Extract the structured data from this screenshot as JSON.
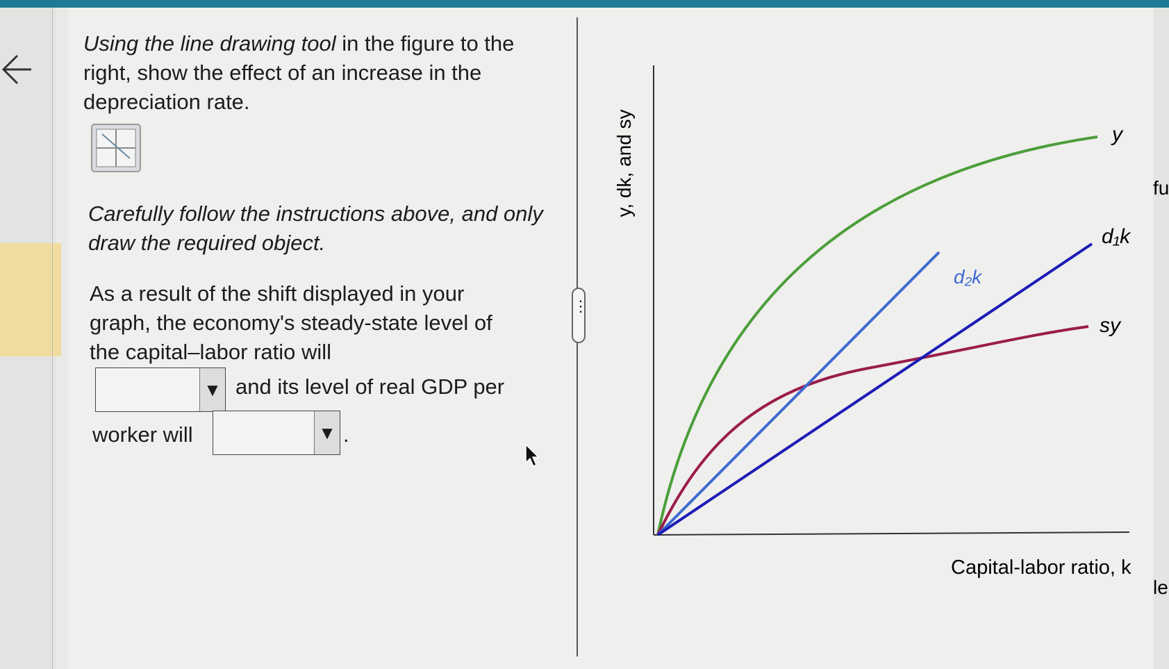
{
  "instructions": {
    "italic": "Using the line drawing tool",
    "rest": " in the figure to the right, show the effect of an increase in the depreciation rate."
  },
  "note": "Carefully follow the instructions above, and only draw the required object.",
  "question": {
    "lead": "As a result of the shift displayed in your graph, the economy's steady-state level of the capital–labor ratio will",
    "middle": "and its level of real GDP per",
    "middle_end": "worker will",
    "end": "."
  },
  "graph": {
    "y_axis_label": "y, dk, and sy",
    "x_axis_label": "Capital-labor ratio, k",
    "curves": [
      {
        "label": "y"
      },
      {
        "label": "d₁k"
      },
      {
        "label": "d₂k"
      },
      {
        "label": "sy"
      }
    ]
  },
  "edge_text": [
    "fu",
    "le"
  ]
}
